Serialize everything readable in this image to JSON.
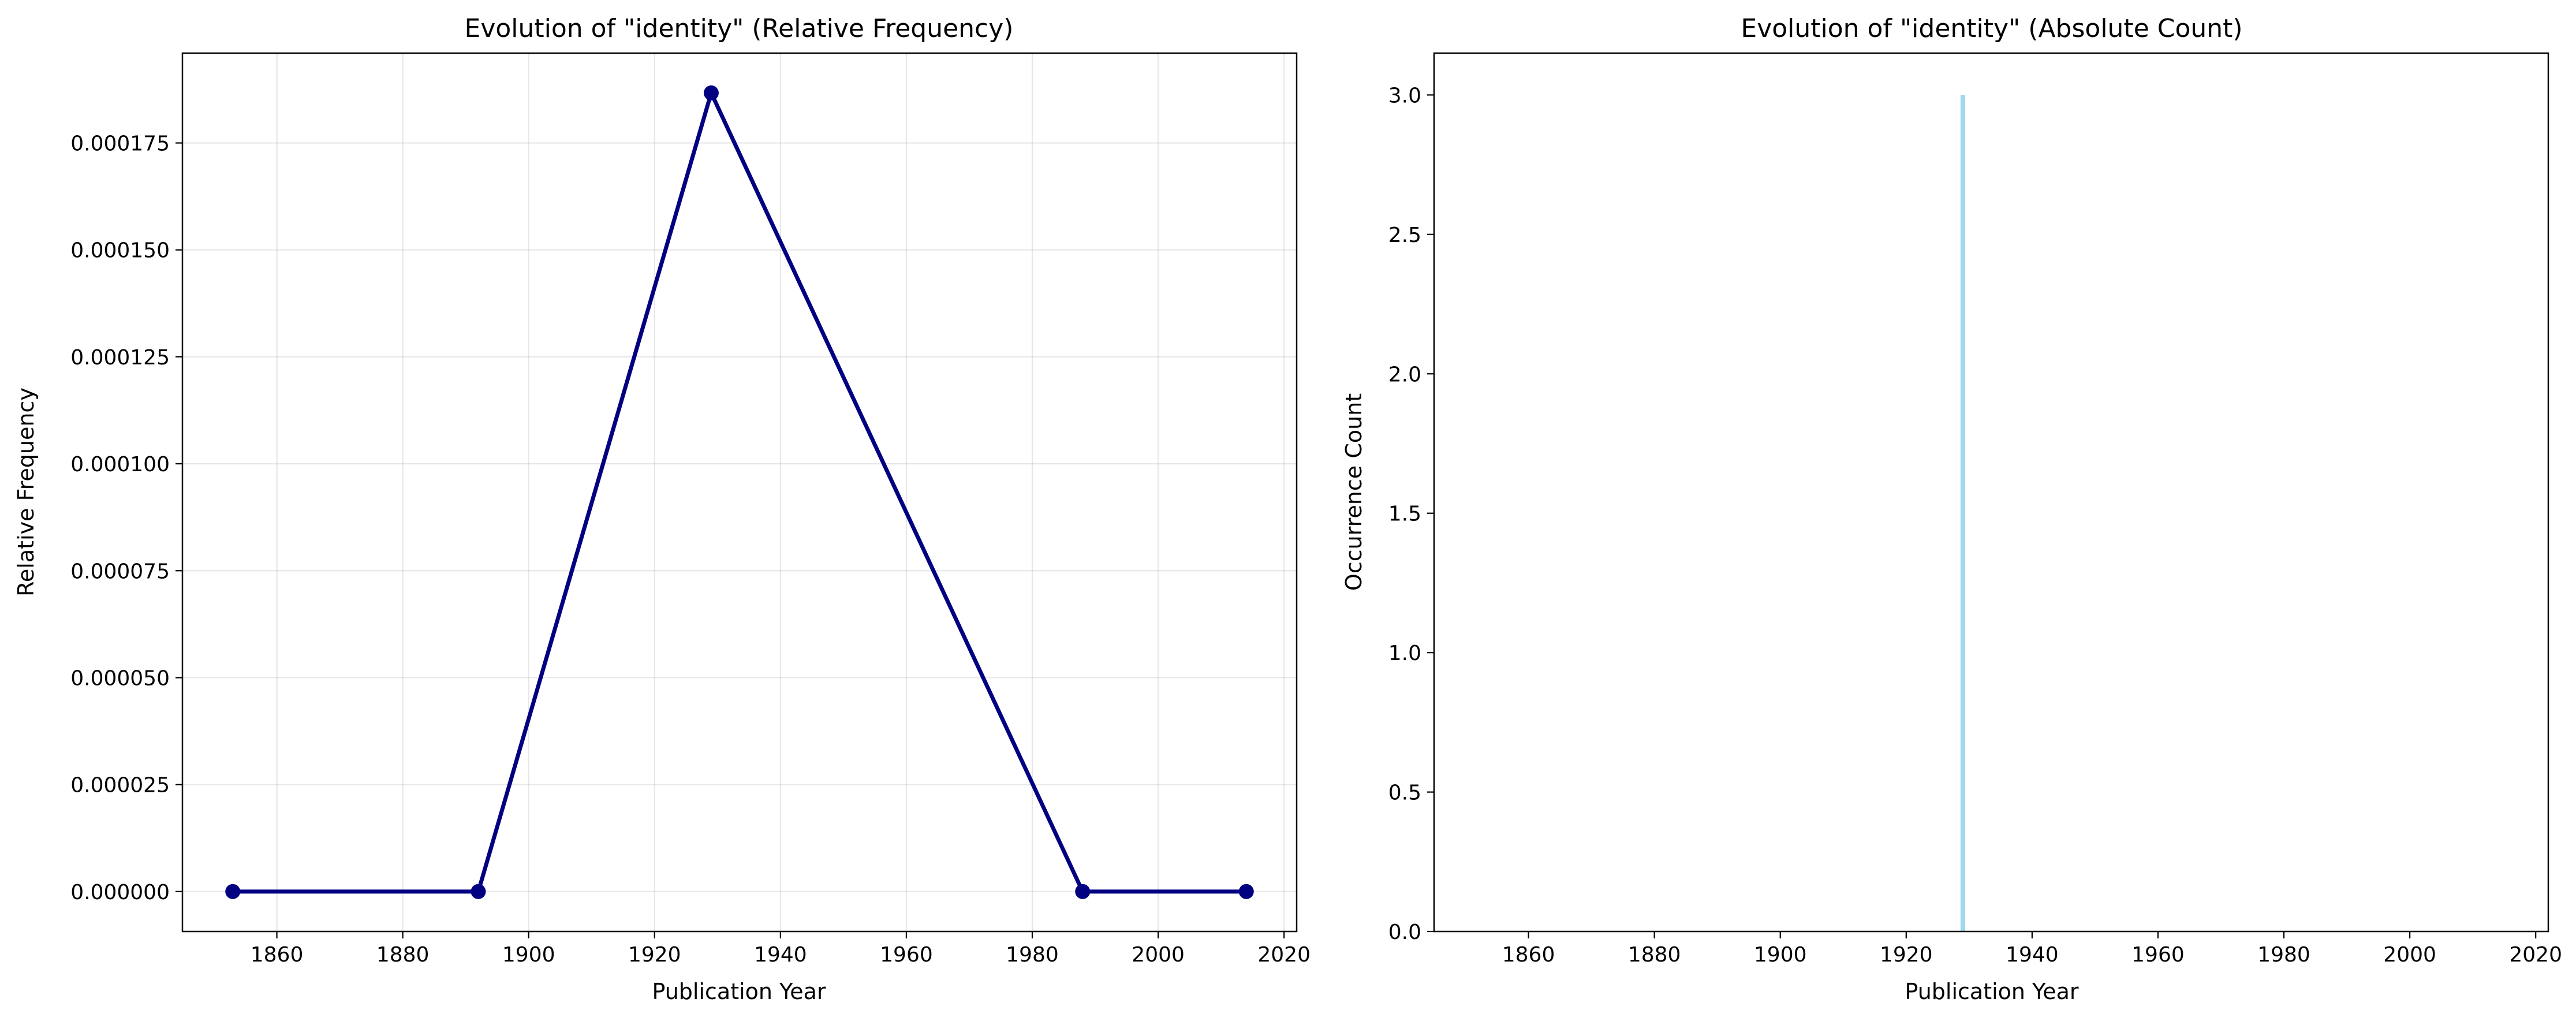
{
  "chart_data": [
    {
      "type": "line",
      "title": "Evolution of \"identity\" (Relative Frequency)",
      "xlabel": "Publication Year",
      "ylabel": "Relative Frequency",
      "xlim": [
        1845,
        2022
      ],
      "ylim": [
        -9.34e-06,
        0.000196
      ],
      "xticks": [
        1860,
        1880,
        1900,
        1920,
        1940,
        1960,
        1980,
        2000,
        2020
      ],
      "xtick_labels": [
        "1860",
        "1880",
        "1900",
        "1920",
        "1940",
        "1960",
        "1980",
        "2000",
        "2020"
      ],
      "yticks": [
        0,
        2.5e-05,
        5e-05,
        7.5e-05,
        0.0001,
        0.000125,
        0.00015,
        0.000175
      ],
      "ytick_labels": [
        "0.000000",
        "0.000025",
        "0.000050",
        "0.000075",
        "0.000100",
        "0.000125",
        "0.000150",
        "0.000175"
      ],
      "grid": true,
      "series": [
        {
          "x": [
            1853,
            1892,
            1929,
            1988,
            2014
          ],
          "y": [
            0,
            0,
            0.0001867,
            0,
            0
          ],
          "color": "#000080",
          "marker": "circle"
        }
      ]
    },
    {
      "type": "bar",
      "title": "Evolution of \"identity\" (Absolute Count)",
      "xlabel": "Publication Year",
      "ylabel": "Occurrence Count",
      "xlim": [
        1845,
        2022
      ],
      "ylim": [
        0,
        3.15
      ],
      "xticks": [
        1860,
        1880,
        1900,
        1920,
        1940,
        1960,
        1980,
        2000,
        2020
      ],
      "xtick_labels": [
        "1860",
        "1880",
        "1900",
        "1920",
        "1940",
        "1960",
        "1980",
        "2000",
        "2020"
      ],
      "yticks": [
        0,
        0.5,
        1,
        1.5,
        2,
        2.5,
        3
      ],
      "ytick_labels": [
        "0.0",
        "0.5",
        "1.0",
        "1.5",
        "2.0",
        "2.5",
        "3.0"
      ],
      "grid": false,
      "series": [
        {
          "x": [
            1853,
            1892,
            1929,
            1988,
            2014
          ],
          "values": [
            0,
            0,
            3,
            0,
            0
          ],
          "color": "#87ceeb"
        }
      ]
    }
  ]
}
